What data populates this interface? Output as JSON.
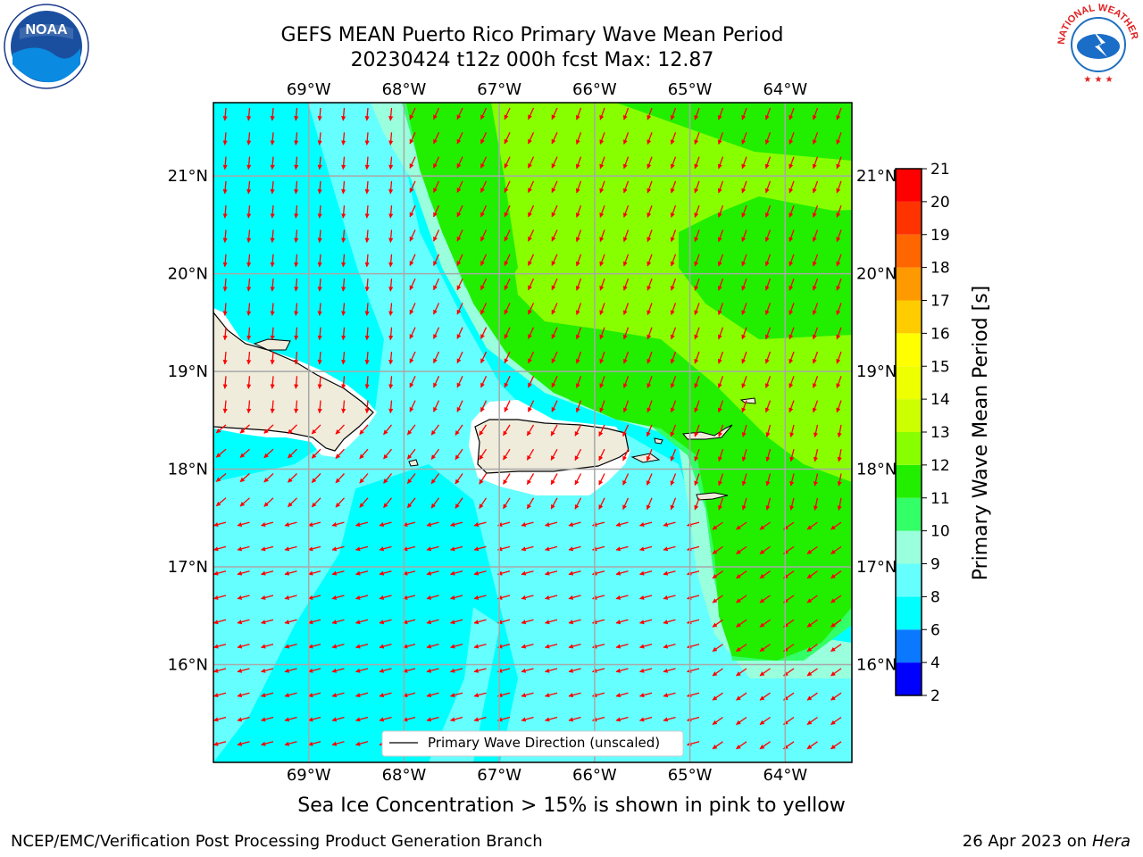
{
  "header": {
    "title_line1": "GEFS MEAN Puerto Rico Primary Wave Mean Period",
    "title_line2": "20230424 t12z 000h fcst   Max: 12.87"
  },
  "map": {
    "lon_labels": [
      "69°W",
      "68°W",
      "67°W",
      "66°W",
      "65°W",
      "64°W"
    ],
    "lat_labels": [
      "21°N",
      "20°N",
      "19°N",
      "18°N",
      "17°N",
      "16°N"
    ],
    "lon_range": [
      -70,
      -63.3
    ],
    "lat_range": [
      15,
      21.75
    ],
    "arrow_color": "#ff0000",
    "land_color": "#efecdc",
    "legend_label": "Primary Wave Direction (unscaled)"
  },
  "colorbar": {
    "label": "Primary Wave Mean Period [s]",
    "levels": [
      2,
      4,
      6,
      8,
      9,
      10,
      11,
      12,
      13,
      14,
      15,
      16,
      17,
      18,
      19,
      20,
      21
    ],
    "colors": [
      "#0000ff",
      "#0a78ff",
      "#00ffff",
      "#66ffff",
      "#99ffdd",
      "#33ff66",
      "#22ee00",
      "#88ff00",
      "#ccff00",
      "#eeff00",
      "#ffff00",
      "#ffcc00",
      "#ff9900",
      "#ff6600",
      "#ff3300",
      "#ff0000"
    ],
    "tick_labels": [
      "2",
      "4",
      "6",
      "8",
      "9",
      "10",
      "11",
      "12",
      "13",
      "14",
      "15",
      "16",
      "17",
      "18",
      "19",
      "20",
      "21"
    ]
  },
  "logos": {
    "noaa_text": "NOAA",
    "nws_text": "NATIONAL WEATHER SERVICE"
  },
  "notes": {
    "ice": "Sea Ice Concentration > 15% is shown in pink to yellow"
  },
  "footer": {
    "left": "NCEP/EMC/Verification Post Processing Product Generation Branch",
    "date": "26 Apr 2023 on",
    "host": "Hera"
  }
}
